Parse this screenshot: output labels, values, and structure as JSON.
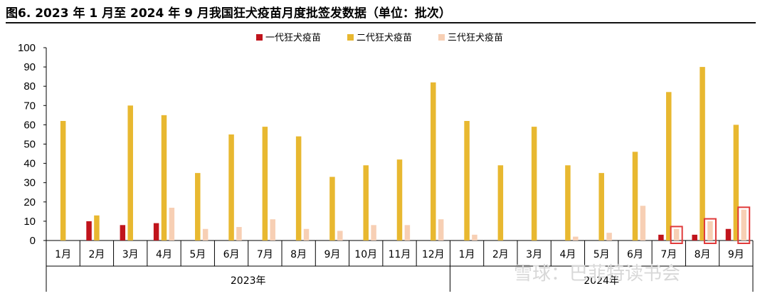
{
  "title": "图6. 2023 年 1 月至 2024 年 9 月我国狂犬疫苗月度批签发数据（单位：批次）",
  "watermark": "雪球：巴菲特读书会",
  "chart_data": {
    "type": "bar",
    "ylim": [
      0,
      100
    ],
    "yticks": [
      0,
      10,
      20,
      30,
      40,
      50,
      60,
      70,
      80,
      90,
      100
    ],
    "legend_position": "top-center",
    "grid": false,
    "groups": [
      {
        "label": "2023年",
        "categories": [
          "1月",
          "2月",
          "3月",
          "4月",
          "5月",
          "6月",
          "7月",
          "8月",
          "9月",
          "10月",
          "11月",
          "12月"
        ]
      },
      {
        "label": "2024年",
        "categories": [
          "1月",
          "2月",
          "3月",
          "4月",
          "5月",
          "6月",
          "7月",
          "8月",
          "9月"
        ]
      }
    ],
    "series": [
      {
        "name": "一代狂犬疫苗",
        "color": "#c0141c",
        "values": [
          0,
          10,
          8,
          9,
          0,
          0,
          0,
          0,
          0,
          0,
          0,
          0,
          0,
          0,
          0,
          0,
          0,
          0,
          3,
          3,
          6
        ]
      },
      {
        "name": "二代狂犬疫苗",
        "color": "#e8b830",
        "values": [
          62,
          13,
          70,
          65,
          35,
          55,
          59,
          54,
          33,
          39,
          42,
          82,
          62,
          39,
          59,
          39,
          35,
          46,
          77,
          90,
          60
        ]
      },
      {
        "name": "三代狂犬疫苗",
        "color": "#f7cfb4",
        "values": [
          0,
          0,
          0,
          17,
          6,
          7,
          11,
          6,
          5,
          8,
          8,
          11,
          3,
          0,
          0,
          2,
          4,
          18,
          6,
          10,
          16
        ]
      }
    ],
    "highlight_color": "#e03a3a"
  }
}
